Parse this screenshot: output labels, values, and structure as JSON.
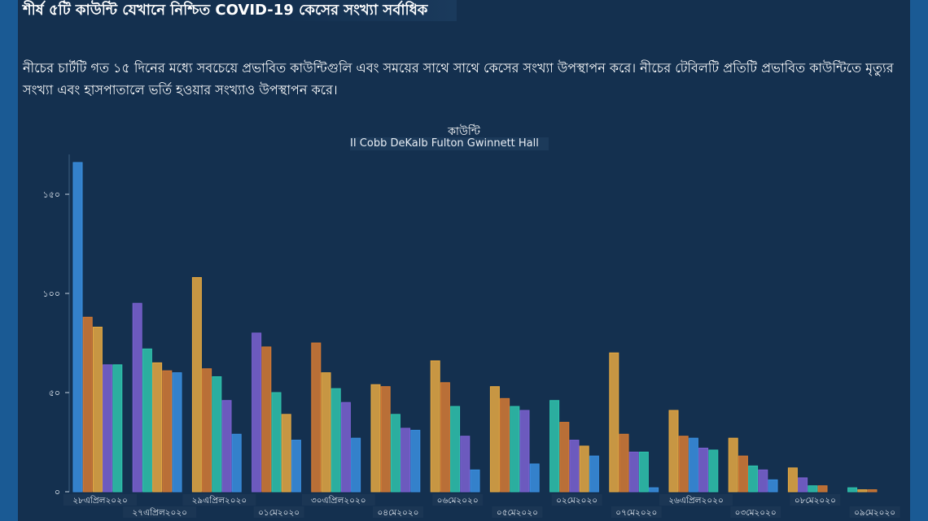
{
  "page": {
    "title": "শীর্ষ ৫টি কাউন্টি যেখানে নিশ্চিত COVID-19 কেসের সংখ্যা সর্বাধিক",
    "description": "নীচের চার্টটি গত ১৫ দিনের মধ্যে সবচেয়ে প্রভাবিত কাউন্টিগুলি এবং সময়ের সাথে সাথে কেসের সংখ্যা উপস্থাপন করে। নীচের টেবিলটি প্রতিটি প্রভাবিত কাউন্টিতে মৃত্যুর সংখ্যা এবং হাসপাতালে ভর্তি হওয়ার সংখ্যাও উপস্থাপন করে।"
  },
  "colors": {
    "Cobb": "#e6a841",
    "DeKalb": "#d67a32",
    "Fulton": "#7b61d1",
    "Gwinnett": "#2fc4ad",
    "Hall": "#3a8fe0"
  },
  "chart_data": {
    "type": "bar",
    "legend_title": "কাউন্টি",
    "legend_text": "II Cobb DeKalb   Fulton Gwinnett Hall",
    "legend_position": "top-center",
    "yticks": [
      "০",
      "৫০",
      "১০০",
      "১৫০"
    ],
    "ylim": [
      0,
      170
    ],
    "grid": false,
    "categories": [
      "২৮এপ্রিল২০২০",
      "২৭এপ্রিল২০২০",
      "২৯এপ্রিল২০২০",
      "০১মে২০২০",
      "৩০এপ্রিল২০২০",
      "০৪মে২০২০",
      "০৬মে২০২০",
      "০৫মে২০২০",
      "০২মে২০২০",
      "০৭মে২০২০",
      "২৬এপ্রিল২০২০",
      "০৩মে২০২০",
      "০৮মে২০২০",
      "০৯মে২০২০"
    ],
    "groups": [
      {
        "bars": [
          {
            "county": "Hall",
            "value": 166
          },
          {
            "county": "DeKalb",
            "value": 88
          },
          {
            "county": "Cobb",
            "value": 83
          },
          {
            "county": "Fulton",
            "value": 64
          },
          {
            "county": "Gwinnett",
            "value": 64
          }
        ]
      },
      {
        "bars": [
          {
            "county": "Fulton",
            "value": 95
          },
          {
            "county": "Gwinnett",
            "value": 72
          },
          {
            "county": "Cobb",
            "value": 65
          },
          {
            "county": "DeKalb",
            "value": 61
          },
          {
            "county": "Hall",
            "value": 60
          }
        ]
      },
      {
        "bars": [
          {
            "county": "Cobb",
            "value": 108
          },
          {
            "county": "DeKalb",
            "value": 62
          },
          {
            "county": "Gwinnett",
            "value": 58
          },
          {
            "county": "Fulton",
            "value": 46
          },
          {
            "county": "Hall",
            "value": 29
          }
        ]
      },
      {
        "bars": [
          {
            "county": "Fulton",
            "value": 80
          },
          {
            "county": "DeKalb",
            "value": 73
          },
          {
            "county": "Gwinnett",
            "value": 50
          },
          {
            "county": "Cobb",
            "value": 39
          },
          {
            "county": "Hall",
            "value": 26
          }
        ]
      },
      {
        "bars": [
          {
            "county": "DeKalb",
            "value": 75
          },
          {
            "county": "Cobb",
            "value": 60
          },
          {
            "county": "Gwinnett",
            "value": 52
          },
          {
            "county": "Fulton",
            "value": 45
          },
          {
            "county": "Hall",
            "value": 27
          }
        ]
      },
      {
        "bars": [
          {
            "county": "Cobb",
            "value": 54
          },
          {
            "county": "DeKalb",
            "value": 53
          },
          {
            "county": "Gwinnett",
            "value": 39
          },
          {
            "county": "Fulton",
            "value": 32
          },
          {
            "county": "Hall",
            "value": 31
          }
        ]
      },
      {
        "bars": [
          {
            "county": "Cobb",
            "value": 66
          },
          {
            "county": "DeKalb",
            "value": 55
          },
          {
            "county": "Gwinnett",
            "value": 43
          },
          {
            "county": "Fulton",
            "value": 28
          },
          {
            "county": "Hall",
            "value": 11
          }
        ]
      },
      {
        "bars": [
          {
            "county": "Cobb",
            "value": 53
          },
          {
            "county": "DeKalb",
            "value": 47
          },
          {
            "county": "Gwinnett",
            "value": 43
          },
          {
            "county": "Fulton",
            "value": 41
          },
          {
            "county": "Hall",
            "value": 14
          }
        ]
      },
      {
        "bars": [
          {
            "county": "Gwinnett",
            "value": 46
          },
          {
            "county": "DeKalb",
            "value": 35
          },
          {
            "county": "Fulton",
            "value": 26
          },
          {
            "county": "Cobb",
            "value": 23
          },
          {
            "county": "Hall",
            "value": 18
          }
        ]
      },
      {
        "bars": [
          {
            "county": "Cobb",
            "value": 70
          },
          {
            "county": "DeKalb",
            "value": 29
          },
          {
            "county": "Fulton",
            "value": 20
          },
          {
            "county": "Gwinnett",
            "value": 20
          },
          {
            "county": "Hall",
            "value": 2
          }
        ]
      },
      {
        "bars": [
          {
            "county": "Cobb",
            "value": 41
          },
          {
            "county": "DeKalb",
            "value": 28
          },
          {
            "county": "Hall",
            "value": 27
          },
          {
            "county": "Fulton",
            "value": 22
          },
          {
            "county": "Gwinnett",
            "value": 21
          }
        ]
      },
      {
        "bars": [
          {
            "county": "Cobb",
            "value": 27
          },
          {
            "county": "DeKalb",
            "value": 18
          },
          {
            "county": "Gwinnett",
            "value": 13
          },
          {
            "county": "Fulton",
            "value": 11
          },
          {
            "county": "Hall",
            "value": 6
          }
        ]
      },
      {
        "bars": [
          {
            "county": "Cobb",
            "value": 12
          },
          {
            "county": "Fulton",
            "value": 7
          },
          {
            "county": "Gwinnett",
            "value": 3
          },
          {
            "county": "DeKalb",
            "value": 3
          }
        ]
      },
      {
        "bars": [
          {
            "county": "Gwinnett",
            "value": 2
          },
          {
            "county": "Cobb",
            "value": 1
          },
          {
            "county": "DeKalb",
            "value": 1
          }
        ]
      }
    ]
  }
}
